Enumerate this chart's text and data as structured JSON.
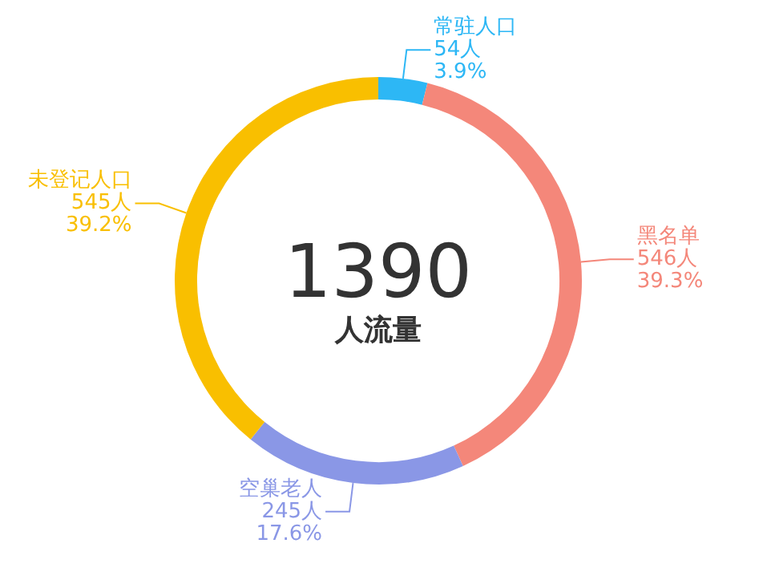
{
  "chart_data": {
    "type": "donut",
    "title": "1390",
    "subtitle": "人流量",
    "categories": [
      "常驻人口",
      "黑名单",
      "空巢老人",
      "未登记人口"
    ],
    "values": [
      54,
      546,
      245,
      545
    ],
    "colors": [
      "#2db7f5",
      "#f4877a",
      "#8a97e6",
      "#f9bf00"
    ],
    "value_labels": [
      "54人\n3.9%",
      "546人\n39.3%",
      "245人\n17.6%",
      "545人\n39.2%"
    ],
    "legend": false
  }
}
